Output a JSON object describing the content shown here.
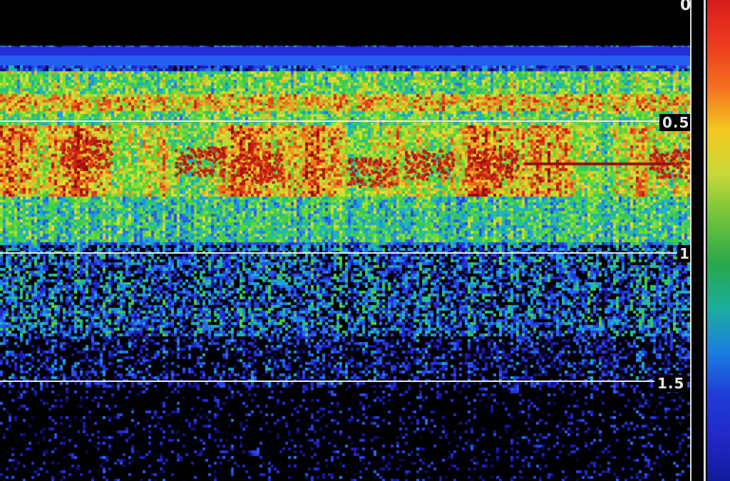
{
  "depth_scale": {
    "top_label": "0",
    "lines": [
      {
        "label": "0.5"
      },
      {
        "label": "1"
      },
      {
        "label": "1.5"
      }
    ]
  },
  "color_scale": {
    "stops": [
      "#d81c1c",
      "#ee3a1e",
      "#f36f1e",
      "#f3c81e",
      "#c9d837",
      "#71c43b",
      "#27a84c",
      "#1cae9d",
      "#1a7fe0",
      "#1f3dd8",
      "#2228c8",
      "#101a9a"
    ]
  },
  "palette": {
    "background": "#000000",
    "deep_blue": "#1f2bd8",
    "blue": "#2e5cf0",
    "cyan": "#18b5d8",
    "green": "#3fd23f",
    "yellow": "#e8e23a",
    "red": "#d8281c",
    "dark_red": "#8a0e0e",
    "line": "#e8e8e8"
  }
}
